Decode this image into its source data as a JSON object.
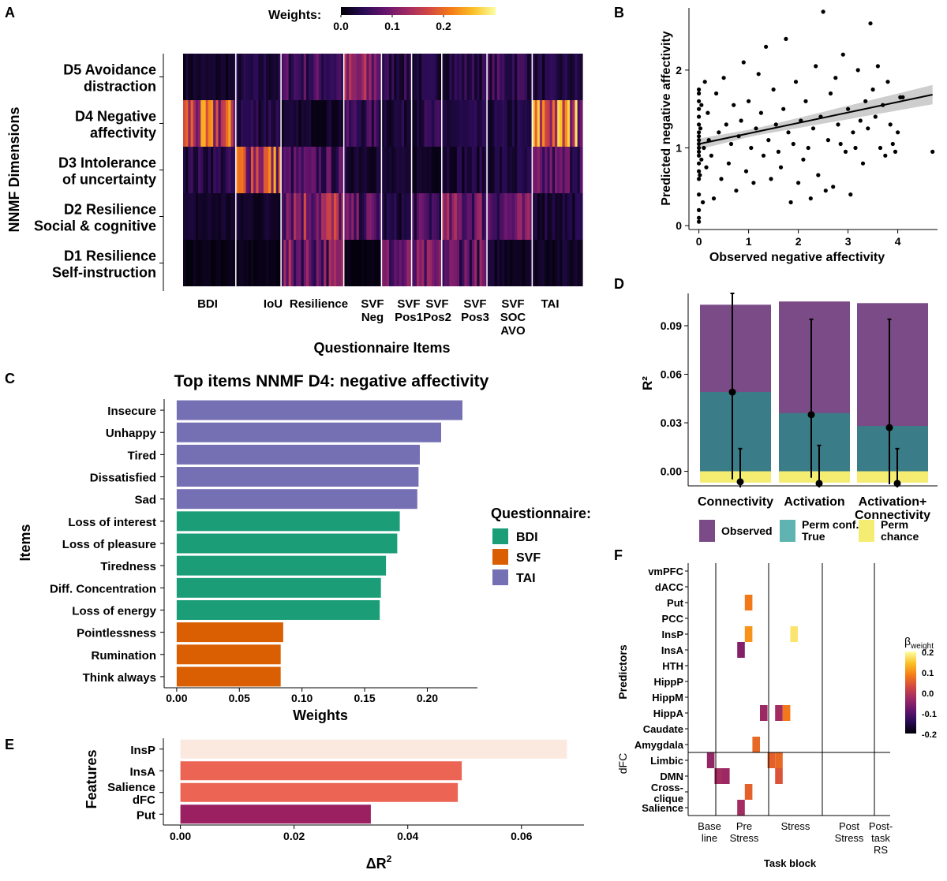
{
  "chart_data": [
    {
      "panel": "A",
      "type": "heatmap",
      "legend_title": "Weights:",
      "legend_ticks": [
        "0.0",
        "0.1",
        "0.2"
      ],
      "ylabel": "NNMF Dimensions",
      "xlabel": "Questionnaire Items",
      "rows": [
        [
          "D5 Avoidance",
          "distraction"
        ],
        [
          "D4 Negative",
          "affectivity"
        ],
        [
          "D3 Intolerance",
          "of uncertainty"
        ],
        [
          "D2 Resilience",
          "Social & cognitive"
        ],
        [
          "D1 Resilience",
          "Self-instruction"
        ]
      ],
      "groups": [
        {
          "label": [
            "BDI"
          ],
          "items": 21
        },
        {
          "label": [
            "IoU"
          ],
          "items": 18
        },
        {
          "label": [
            "Resilience"
          ],
          "items": 25
        },
        {
          "label": [
            "SVF",
            "Neg"
          ],
          "items": 15
        },
        {
          "label": [
            "SVF",
            "Pos1"
          ],
          "items": 12
        },
        {
          "label": [
            "SVF",
            "Pos2"
          ],
          "items": 12
        },
        {
          "label": [
            "SVF",
            "Pos3"
          ],
          "items": 18
        },
        {
          "label": [
            "SVF",
            "SOC",
            "AVO"
          ],
          "items": 18
        },
        {
          "label": [
            "TAI"
          ],
          "items": 20
        }
      ],
      "group_means": [
        [
          0.02,
          0.03,
          0.06,
          0.1,
          0.04,
          0.03,
          0.04,
          0.05,
          0.03
        ],
        [
          0.15,
          0.04,
          0.02,
          0.05,
          0.03,
          0.04,
          0.03,
          0.03,
          0.18
        ],
        [
          0.04,
          0.16,
          0.06,
          0.03,
          0.02,
          0.02,
          0.03,
          0.03,
          0.07
        ],
        [
          0.02,
          0.02,
          0.12,
          0.07,
          0.03,
          0.06,
          0.09,
          0.08,
          0.03
        ],
        [
          0.01,
          0.01,
          0.09,
          0.01,
          0.08,
          0.08,
          0.08,
          0.02,
          0.02
        ]
      ]
    },
    {
      "panel": "B",
      "type": "scatter",
      "xlabel": "Observed negative affectivity",
      "ylabel": "Predicted negative affectivity",
      "xlim": [
        -0.2,
        4.8
      ],
      "ylim": [
        -0.05,
        2.8
      ],
      "xticks": [
        "0",
        "1",
        "2",
        "3",
        "4"
      ],
      "yticks": [
        "0",
        "1",
        "2"
      ],
      "regression": {
        "intercept": 1.05,
        "slope": 0.135
      },
      "points": [
        [
          0.0,
          0.2
        ],
        [
          0.0,
          0.05
        ],
        [
          0.0,
          0.1
        ],
        [
          0.0,
          0.4
        ],
        [
          0.0,
          0.6
        ],
        [
          0.0,
          0.7
        ],
        [
          0.0,
          0.8
        ],
        [
          0.0,
          0.9
        ],
        [
          0.0,
          0.95
        ],
        [
          0.0,
          1.0
        ],
        [
          0.0,
          1.05
        ],
        [
          0.0,
          1.1
        ],
        [
          0.0,
          1.15
        ],
        [
          0.0,
          1.2
        ],
        [
          0.0,
          1.3
        ],
        [
          0.0,
          1.4
        ],
        [
          0.0,
          1.5
        ],
        [
          0.0,
          1.6
        ],
        [
          0.0,
          1.7
        ],
        [
          0.0,
          1.75
        ],
        [
          0.02,
          0.65
        ],
        [
          0.03,
          1.25
        ],
        [
          0.05,
          0.85
        ],
        [
          0.05,
          1.55
        ],
        [
          0.08,
          0.3
        ],
        [
          0.1,
          1.0
        ],
        [
          0.12,
          1.85
        ],
        [
          0.15,
          0.75
        ],
        [
          0.18,
          1.45
        ],
        [
          0.2,
          1.1
        ],
        [
          0.25,
          0.9
        ],
        [
          0.3,
          0.35
        ],
        [
          0.35,
          1.7
        ],
        [
          0.4,
          1.2
        ],
        [
          0.45,
          0.6
        ],
        [
          0.5,
          1.9
        ],
        [
          0.55,
          1.3
        ],
        [
          0.6,
          0.8
        ],
        [
          0.65,
          1.05
        ],
        [
          0.7,
          1.55
        ],
        [
          0.75,
          0.45
        ],
        [
          0.8,
          1.15
        ],
        [
          0.85,
          1.35
        ],
        [
          0.9,
          2.1
        ],
        [
          0.95,
          0.7
        ],
        [
          1.0,
          1.6
        ],
        [
          1.05,
          1.0
        ],
        [
          1.1,
          0.55
        ],
        [
          1.15,
          1.25
        ],
        [
          1.2,
          1.95
        ],
        [
          1.25,
          1.45
        ],
        [
          1.3,
          0.9
        ],
        [
          1.35,
          2.3
        ],
        [
          1.4,
          1.1
        ],
        [
          1.45,
          0.6
        ],
        [
          1.5,
          1.75
        ],
        [
          1.55,
          1.3
        ],
        [
          1.6,
          0.95
        ],
        [
          1.65,
          0.75
        ],
        [
          1.7,
          1.5
        ],
        [
          1.75,
          2.4
        ],
        [
          1.8,
          1.2
        ],
        [
          1.85,
          0.3
        ],
        [
          1.9,
          1.05
        ],
        [
          1.95,
          1.85
        ],
        [
          2.0,
          0.55
        ],
        [
          2.05,
          1.35
        ],
        [
          2.1,
          0.85
        ],
        [
          2.15,
          1.6
        ],
        [
          2.2,
          1.0
        ],
        [
          2.25,
          0.35
        ],
        [
          2.3,
          1.25
        ],
        [
          2.35,
          2.05
        ],
        [
          2.4,
          0.65
        ],
        [
          2.45,
          1.4
        ],
        [
          2.5,
          2.75
        ],
        [
          2.55,
          0.45
        ],
        [
          2.6,
          1.1
        ],
        [
          2.65,
          1.7
        ],
        [
          2.7,
          0.5
        ],
        [
          2.75,
          1.9
        ],
        [
          2.8,
          1.3
        ],
        [
          2.85,
          1.05
        ],
        [
          2.9,
          2.2
        ],
        [
          2.95,
          0.95
        ],
        [
          3.0,
          1.5
        ],
        [
          3.05,
          0.4
        ],
        [
          3.1,
          1.2
        ],
        [
          3.15,
          1.0
        ],
        [
          3.2,
          2.0
        ],
        [
          3.25,
          1.35
        ],
        [
          3.3,
          0.8
        ],
        [
          3.35,
          1.6
        ],
        [
          3.4,
          1.25
        ],
        [
          3.45,
          2.6
        ],
        [
          3.5,
          1.75
        ],
        [
          3.55,
          1.4
        ],
        [
          3.6,
          2.05
        ],
        [
          3.65,
          1.0
        ],
        [
          3.7,
          1.55
        ],
        [
          3.75,
          0.9
        ],
        [
          3.8,
          1.85
        ],
        [
          3.85,
          1.3
        ],
        [
          3.9,
          1.05
        ],
        [
          3.95,
          0.95
        ],
        [
          4.0,
          1.2
        ],
        [
          4.05,
          1.65
        ],
        [
          4.1,
          1.65
        ],
        [
          4.7,
          0.95
        ]
      ]
    },
    {
      "panel": "C",
      "type": "bar",
      "title": "Top items NNMF D4: negative affectivity",
      "xlabel": "Weights",
      "ylabel": "Items",
      "xlim": [
        -0.01,
        0.24
      ],
      "xticks": [
        "0.00",
        "0.05",
        "0.10",
        "0.15",
        "0.20"
      ],
      "legend_title": "Questionnaire:",
      "legend": [
        {
          "name": "BDI",
          "color": "#1b9e77"
        },
        {
          "name": "SVF",
          "color": "#d95f02"
        },
        {
          "name": "TAI",
          "color": "#7570b3"
        }
      ],
      "categories": [
        "Insecure",
        "Unhappy",
        "Tired",
        "Dissatisfied",
        "Sad",
        "Loss of interest",
        "Loss of pleasure",
        "Tiredness",
        "Diff. Concentration",
        "Loss of energy",
        "Pointlessness",
        "Rumination",
        "Think always"
      ],
      "values": [
        0.228,
        0.211,
        0.194,
        0.193,
        0.192,
        0.178,
        0.176,
        0.167,
        0.163,
        0.162,
        0.085,
        0.083,
        0.083
      ],
      "groups": [
        "TAI",
        "TAI",
        "TAI",
        "TAI",
        "TAI",
        "BDI",
        "BDI",
        "BDI",
        "BDI",
        "BDI",
        "SVF",
        "SVF",
        "SVF"
      ]
    },
    {
      "panel": "D",
      "type": "bar",
      "ylabel": "R²",
      "ylim": [
        -0.009,
        0.11
      ],
      "yticks": [
        "0.00",
        "0.03",
        "0.06",
        "0.09"
      ],
      "categories": [
        [
          "Connectivity"
        ],
        [
          "Activation"
        ],
        [
          "Activation+",
          "Connectivity"
        ]
      ],
      "series": [
        {
          "name": "Observed",
          "values": [
            0.103,
            0.105,
            0.104
          ]
        },
        {
          "name": "Perm conf. True",
          "values": [
            0.049,
            0.036,
            0.028
          ]
        },
        {
          "name": "Perm chance",
          "values": [
            -0.007,
            -0.007,
            -0.007
          ]
        }
      ],
      "points_observed": [
        0.049,
        0.035,
        0.027
      ],
      "err_observed": [
        [
          -0.005,
          0.11
        ],
        [
          -0.004,
          0.094
        ],
        [
          -0.008,
          0.094
        ]
      ],
      "points_perm": [
        -0.0065,
        -0.0075,
        -0.0075
      ],
      "err_perm": [
        [
          -0.01,
          0.014
        ],
        [
          -0.01,
          0.016
        ],
        [
          -0.01,
          0.014
        ]
      ],
      "legend": [
        {
          "name": [
            "Observed"
          ],
          "color": "#7b4b87"
        },
        {
          "name": [
            "Perm conf.",
            "True"
          ],
          "color": "#5fb3b0"
        },
        {
          "name": [
            "Perm",
            "chance"
          ],
          "color": "#f5ec72"
        }
      ]
    },
    {
      "panel": "E",
      "type": "bar",
      "xlabel": "ΔR",
      "ylabel": "Features",
      "xlim": [
        -0.003,
        0.071
      ],
      "xticks": [
        "0.00",
        "0.02",
        "0.04",
        "0.06"
      ],
      "categories": [
        [
          "InsP"
        ],
        [
          "InsA"
        ],
        [
          "Salience",
          "dFC"
        ],
        [
          "Put"
        ]
      ],
      "values": [
        0.068,
        0.0495,
        0.0488,
        0.0335
      ],
      "colors": [
        "#fbe9df",
        "#ec6453",
        "#ec6453",
        "#9a2062"
      ]
    },
    {
      "panel": "F",
      "type": "heatmap",
      "xlabel": "Task block",
      "ylabel_top": "Predictors",
      "ylabel_bottom": "dFC",
      "legend_title": "β",
      "legend_subscript": "weight",
      "legend_ticks": [
        "0.2",
        "0.1",
        "0.0",
        "-0.1",
        "-0.2"
      ],
      "rows": [
        [
          "vmPFC"
        ],
        [
          "dACC"
        ],
        [
          "Put"
        ],
        [
          "PCC"
        ],
        [
          "InsP"
        ],
        [
          "InsA"
        ],
        [
          "HTH"
        ],
        [
          "HippP"
        ],
        [
          "HippM"
        ],
        [
          "HippA"
        ],
        [
          "Caudate"
        ],
        [
          "Amygdala"
        ],
        [
          "Limbic"
        ],
        [
          "DMN"
        ],
        [
          "Cross-",
          "clique"
        ],
        [
          "Salience"
        ]
      ],
      "blocks": [
        [
          "Base",
          "line"
        ],
        [
          "Pre",
          "Stress"
        ],
        [
          "Stress"
        ],
        [
          "Post",
          "Stress"
        ],
        [
          "Post-",
          "task",
          "RS"
        ]
      ],
      "cells": [
        {
          "row": 2,
          "col": 6,
          "value": 0.1
        },
        {
          "row": 4,
          "col": 6,
          "value": 0.13
        },
        {
          "row": 4,
          "col": 12,
          "value": 0.22
        },
        {
          "row": 5,
          "col": 5,
          "value": -0.07
        },
        {
          "row": 9,
          "col": 8,
          "value": -0.04
        },
        {
          "row": 9,
          "col": 10,
          "value": -0.03
        },
        {
          "row": 9,
          "col": 11,
          "value": 0.1
        },
        {
          "row": 11,
          "col": 7,
          "value": 0.08
        },
        {
          "row": 12,
          "col": 1,
          "value": -0.05
        },
        {
          "row": 12,
          "col": 9,
          "value": 0.07
        },
        {
          "row": 12,
          "col": 10,
          "value": 0.08
        },
        {
          "row": 13,
          "col": 2,
          "value": -0.03
        },
        {
          "row": 13,
          "col": 3,
          "value": -0.04
        },
        {
          "row": 13,
          "col": 10,
          "value": 0.05
        },
        {
          "row": 14,
          "col": 6,
          "value": 0.07
        },
        {
          "row": 15,
          "col": 5,
          "value": -0.03
        }
      ]
    }
  ],
  "panel_labels": [
    "A",
    "B",
    "C",
    "D",
    "E",
    "F"
  ]
}
